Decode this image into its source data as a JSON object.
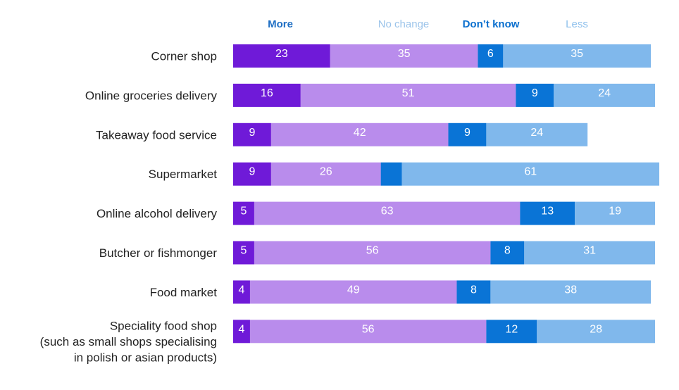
{
  "chart_data": {
    "type": "bar",
    "orientation": "horizontal",
    "stacked": true,
    "xlim": [
      0,
      100
    ],
    "grid": false,
    "legend_placement": "top",
    "categories": [
      [
        "Corner shop"
      ],
      [
        "Online groceries delivery"
      ],
      [
        "Takeaway food service"
      ],
      [
        "Supermarket"
      ],
      [
        "Online alcohol delivery"
      ],
      [
        "Butcher or fishmonger"
      ],
      [
        "Food market"
      ],
      [
        "Speciality food shop",
        "(such as small shops specialising",
        "in polish or asian products)"
      ]
    ],
    "series": [
      {
        "name": "More",
        "color": "#6f1ad8",
        "legend_color": "#1f6fc4",
        "values": [
          23,
          16,
          9,
          9,
          5,
          5,
          4,
          4
        ],
        "labels": [
          "23",
          "16",
          "9",
          "9",
          "5",
          "5",
          "4",
          "4"
        ]
      },
      {
        "name": "No change",
        "color": "#b98cec",
        "legend_color": "#9cc4ea",
        "values": [
          35,
          51,
          42,
          26,
          63,
          56,
          49,
          56
        ],
        "labels": [
          "35",
          "51",
          "42",
          "26",
          "63",
          "56",
          "49",
          "56"
        ]
      },
      {
        "name": "Don’t know",
        "color": "#0a74d6",
        "legend_color": "#0a6fce",
        "values": [
          6,
          9,
          9,
          5,
          13,
          8,
          8,
          12
        ],
        "labels": [
          "6",
          "9",
          "9",
          "",
          "13",
          "8",
          "8",
          "12"
        ]
      },
      {
        "name": "Less",
        "color": "#80b8ec",
        "legend_color": "#8cbfec",
        "values": [
          35,
          24,
          24,
          61,
          19,
          31,
          38,
          28
        ],
        "labels": [
          "35",
          "24",
          "24",
          "61",
          "19",
          "31",
          "38",
          "28"
        ]
      }
    ]
  }
}
